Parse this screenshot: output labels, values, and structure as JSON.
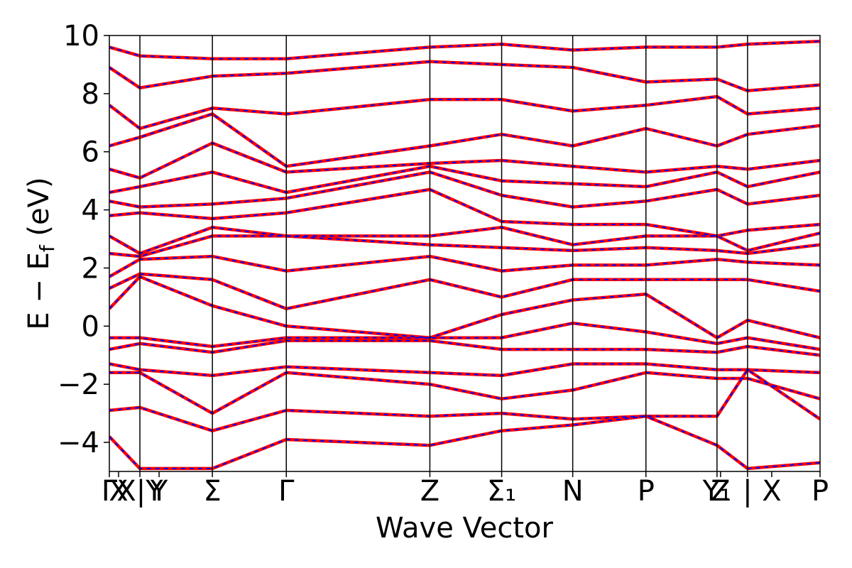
{
  "chart_data": {
    "type": "line",
    "title": "",
    "xlabel": "Wave Vector",
    "ylabel": "E − E_f (eV)",
    "ylabel_parts": {
      "main": "E − E",
      "sub": "f",
      "unit": " (eV)"
    },
    "ylim": [
      -5,
      10
    ],
    "xlim": [
      0,
      1
    ],
    "grid": false,
    "legend": "none",
    "y_ticks": [
      -4,
      -2,
      0,
      2,
      4,
      6,
      8,
      10
    ],
    "y_tick_labels": [
      "−4",
      "−2",
      "0",
      "2",
      "4",
      "6",
      "8",
      "10"
    ],
    "k_ticks": [
      {
        "x": 0.0,
        "label": "Γ"
      },
      {
        "x": 0.013,
        "label": "X"
      },
      {
        "x": 0.043,
        "label": "X|Y"
      },
      {
        "x": 0.07,
        "label": "Y"
      },
      {
        "x": 0.145,
        "label": "Σ"
      },
      {
        "x": 0.249,
        "label": "Γ"
      },
      {
        "x": 0.451,
        "label": "Z"
      },
      {
        "x": 0.552,
        "label": "Σ₁"
      },
      {
        "x": 0.652,
        "label": "N"
      },
      {
        "x": 0.755,
        "label": "P"
      },
      {
        "x": 0.855,
        "label": "Y₁"
      },
      {
        "x": 0.86,
        "label": "Z"
      },
      {
        "x": 0.898,
        "label": "|"
      },
      {
        "x": 0.932,
        "label": "X"
      },
      {
        "x": 1.0,
        "label": "P"
      }
    ],
    "segment_boundaries": [
      0.043,
      0.145,
      0.249,
      0.451,
      0.552,
      0.652,
      0.755,
      0.855,
      0.898
    ],
    "colors": {
      "dft_bands": "#ff0000",
      "fit_bands": "#0000ff",
      "kpath_lines": "#000000"
    },
    "series": [
      {
        "name": "",
        "style": "solid",
        "color": "#ff0000",
        "bands": [
          {
            "x": [
              0,
              0.043,
              0.145,
              0.249,
              0.451,
              0.552,
              0.652,
              0.755,
              0.855,
              0.898,
              1.0
            ],
            "y": [
              -3.8,
              -4.9,
              -4.9,
              -3.9,
              -4.1,
              -3.6,
              -3.4,
              -3.1,
              -4.1,
              -4.9,
              -4.7
            ]
          },
          {
            "x": [
              0,
              0.043,
              0.145,
              0.249,
              0.451,
              0.552,
              0.652,
              0.755,
              0.855,
              0.898,
              1.0
            ],
            "y": [
              -2.9,
              -2.8,
              -3.6,
              -2.9,
              -3.1,
              -3.0,
              -3.2,
              -3.1,
              -3.1,
              -1.5,
              -3.2
            ]
          },
          {
            "x": [
              0,
              0.043,
              0.145,
              0.249,
              0.451,
              0.552,
              0.652,
              0.755,
              0.855,
              0.898,
              1.0
            ],
            "y": [
              -1.6,
              -1.6,
              -3.0,
              -1.6,
              -2.0,
              -2.5,
              -2.2,
              -1.6,
              -1.8,
              -1.8,
              -2.5
            ]
          },
          {
            "x": [
              0,
              0.043,
              0.145,
              0.249,
              0.451,
              0.552,
              0.652,
              0.755,
              0.855,
              0.898,
              1.0
            ],
            "y": [
              -1.3,
              -1.5,
              -1.7,
              -1.4,
              -1.6,
              -1.7,
              -1.3,
              -1.3,
              -1.5,
              -1.5,
              -1.6
            ]
          },
          {
            "x": [
              0,
              0.043,
              0.145,
              0.249,
              0.451,
              0.552,
              0.652,
              0.755,
              0.855,
              0.898,
              1.0
            ],
            "y": [
              -0.8,
              -0.6,
              -0.9,
              -0.5,
              -0.5,
              -0.8,
              -0.8,
              -0.8,
              -0.9,
              -0.7,
              -1.0
            ]
          },
          {
            "x": [
              0,
              0.043,
              0.145,
              0.249,
              0.451,
              0.552,
              0.652,
              0.755,
              0.855,
              0.898,
              1.0
            ],
            "y": [
              -0.4,
              -0.4,
              -0.7,
              -0.4,
              -0.4,
              -0.4,
              0.1,
              -0.2,
              -0.6,
              -0.4,
              -0.8
            ]
          },
          {
            "x": [
              0,
              0.043,
              0.145,
              0.249,
              0.451,
              0.552,
              0.652,
              0.755,
              0.855,
              0.898,
              1.0
            ],
            "y": [
              0.6,
              1.7,
              0.7,
              0.0,
              -0.4,
              0.4,
              0.9,
              1.1,
              -0.4,
              0.2,
              -0.4
            ]
          },
          {
            "x": [
              0,
              0.043,
              0.145,
              0.249,
              0.451,
              0.552,
              0.652,
              0.755,
              0.855,
              0.898,
              1.0
            ],
            "y": [
              1.3,
              1.8,
              1.6,
              0.6,
              1.6,
              1.0,
              1.6,
              1.6,
              1.6,
              1.6,
              1.2
            ]
          },
          {
            "x": [
              0,
              0.043,
              0.145,
              0.249,
              0.451,
              0.552,
              0.652,
              0.755,
              0.855,
              0.898,
              1.0
            ],
            "y": [
              1.7,
              2.3,
              2.4,
              1.9,
              2.4,
              1.9,
              2.1,
              2.1,
              2.3,
              2.2,
              2.1
            ]
          },
          {
            "x": [
              0,
              0.043,
              0.145,
              0.249,
              0.451,
              0.552,
              0.652,
              0.755,
              0.855,
              0.898,
              1.0
            ],
            "y": [
              2.5,
              2.4,
              3.1,
              3.1,
              2.8,
              2.7,
              2.6,
              2.7,
              2.6,
              2.5,
              2.8
            ]
          },
          {
            "x": [
              0,
              0.043,
              0.145,
              0.249,
              0.451,
              0.552,
              0.652,
              0.755,
              0.855,
              0.898,
              1.0
            ],
            "y": [
              3.1,
              2.5,
              3.4,
              3.1,
              3.1,
              3.4,
              2.8,
              3.1,
              3.1,
              2.6,
              3.2
            ]
          },
          {
            "x": [
              0,
              0.043,
              0.145,
              0.249,
              0.451,
              0.552,
              0.652,
              0.755,
              0.855,
              0.898,
              1.0
            ],
            "y": [
              3.8,
              3.9,
              3.7,
              3.9,
              4.7,
              3.6,
              3.5,
              3.5,
              3.1,
              3.3,
              3.5
            ]
          },
          {
            "x": [
              0,
              0.043,
              0.145,
              0.249,
              0.451,
              0.552,
              0.652,
              0.755,
              0.855,
              0.898,
              1.0
            ],
            "y": [
              4.3,
              4.1,
              4.2,
              4.4,
              5.3,
              4.5,
              4.1,
              4.3,
              4.7,
              4.2,
              4.5
            ]
          },
          {
            "x": [
              0,
              0.043,
              0.145,
              0.249,
              0.451,
              0.552,
              0.652,
              0.755,
              0.855,
              0.898,
              1.0
            ],
            "y": [
              4.6,
              4.8,
              5.3,
              4.6,
              5.5,
              5.0,
              4.9,
              4.8,
              5.3,
              4.8,
              5.3
            ]
          },
          {
            "x": [
              0,
              0.043,
              0.145,
              0.249,
              0.451,
              0.552,
              0.652,
              0.755,
              0.855,
              0.898,
              1.0
            ],
            "y": [
              5.4,
              5.1,
              6.3,
              5.3,
              5.6,
              5.7,
              5.5,
              5.3,
              5.5,
              5.4,
              5.7
            ]
          },
          {
            "x": [
              0,
              0.043,
              0.145,
              0.249,
              0.451,
              0.552,
              0.652,
              0.755,
              0.855,
              0.898,
              1.0
            ],
            "y": [
              6.2,
              6.5,
              7.3,
              5.5,
              6.2,
              6.6,
              6.2,
              6.8,
              6.2,
              6.6,
              6.9
            ]
          },
          {
            "x": [
              0,
              0.043,
              0.145,
              0.249,
              0.451,
              0.552,
              0.652,
              0.755,
              0.855,
              0.898,
              1.0
            ],
            "y": [
              7.6,
              6.8,
              7.5,
              7.3,
              7.8,
              7.8,
              7.4,
              7.6,
              7.9,
              7.3,
              7.5
            ]
          },
          {
            "x": [
              0,
              0.043,
              0.145,
              0.249,
              0.451,
              0.552,
              0.652,
              0.755,
              0.855,
              0.898,
              1.0
            ],
            "y": [
              8.9,
              8.2,
              8.6,
              8.7,
              9.1,
              9.0,
              8.9,
              8.4,
              8.5,
              8.1,
              8.3
            ]
          },
          {
            "x": [
              0,
              0.043,
              0.145,
              0.249,
              0.451,
              0.552,
              0.652,
              0.755,
              0.855,
              0.898,
              1.0
            ],
            "y": [
              9.6,
              9.3,
              9.2,
              9.2,
              9.6,
              9.7,
              9.5,
              9.6,
              9.6,
              9.7,
              9.8
            ]
          }
        ]
      },
      {
        "name": "",
        "style": "dashed",
        "color": "#0000ff",
        "same_as": 0
      }
    ]
  }
}
